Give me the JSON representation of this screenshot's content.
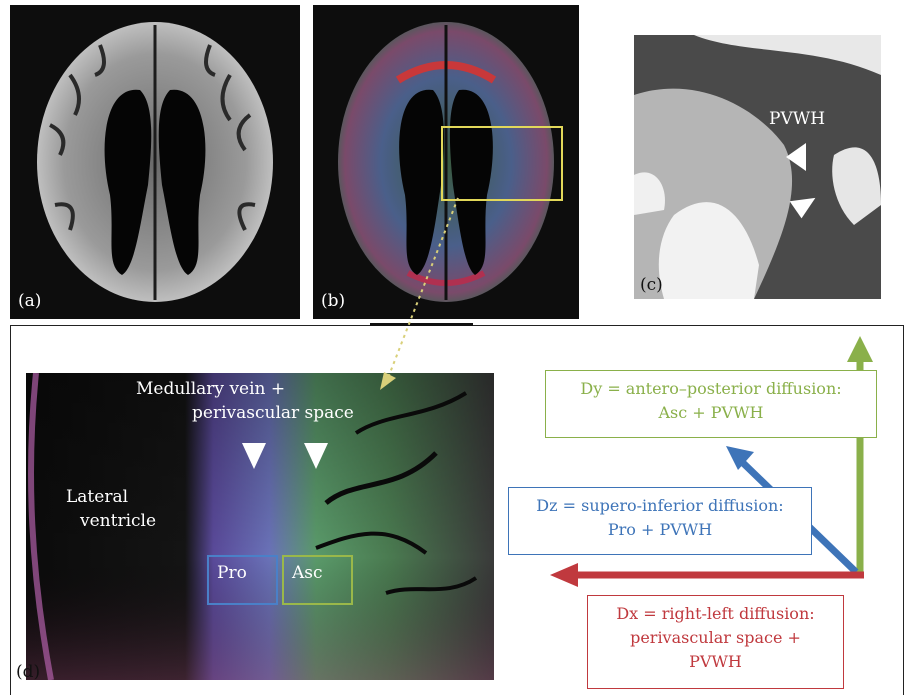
{
  "panels": {
    "a": {
      "label": "(a)"
    },
    "b": {
      "label": "(b)"
    },
    "c": {
      "label": "(c)",
      "annotation": "PVWH"
    },
    "d": {
      "label": "(d)",
      "vein_label_line1": "Medullary vein +",
      "vein_label_line2": "perivascular space",
      "ventricle_line1": "Lateral",
      "ventricle_line2": "ventricle",
      "roi_pro": "Pro",
      "roi_asc": "Asc"
    }
  },
  "legend": {
    "dy": {
      "line1": "Dy = antero–posterior diffusion:",
      "line2": "Asc + PVWH",
      "color": "#8ab04a"
    },
    "dz": {
      "line1": "Dz = supero-inferior diffusion:",
      "line2": "Pro + PVWH",
      "color": "#3e74b8"
    },
    "dx": {
      "line1": "Dx = right-left diffusion:",
      "line2": "perivascular space +",
      "line3": "PVWH",
      "color": "#c0393e"
    }
  },
  "colors": {
    "roi_box": "#e2d85a",
    "pro_box": "#4a80c8",
    "asc_box": "#9ab84a"
  }
}
